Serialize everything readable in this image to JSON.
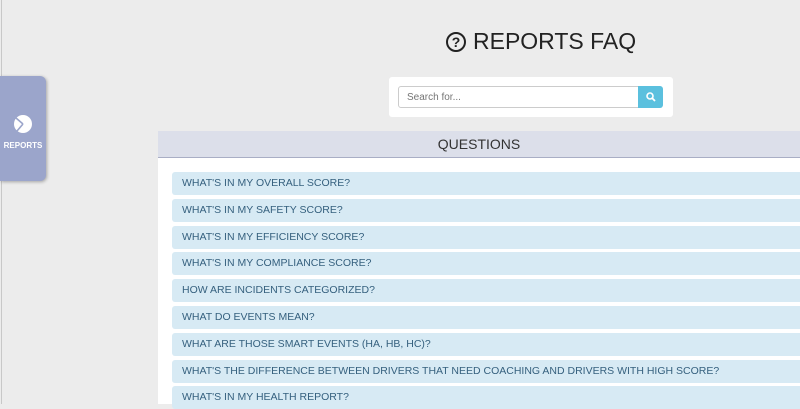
{
  "sidebar": {
    "reports_label": "REPORTS"
  },
  "page": {
    "title": "REPORTS FAQ"
  },
  "search": {
    "placeholder": "Search for...",
    "value": ""
  },
  "questions": {
    "header": "QUESTIONS",
    "items": [
      "WHAT'S IN MY OVERALL SCORE?",
      "WHAT'S IN MY SAFETY SCORE?",
      "WHAT'S IN MY EFFICIENCY SCORE?",
      "WHAT'S IN MY COMPLIANCE SCORE?",
      "HOW ARE INCIDENTS CATEGORIZED?",
      "WHAT DO EVENTS MEAN?",
      "WHAT ARE THOSE SMART EVENTS (HA, HB, HC)?",
      "WHAT'S THE DIFFERENCE BETWEEN DRIVERS THAT NEED COACHING AND DRIVERS WITH HIGH SCORE?",
      "WHAT'S IN MY HEALTH REPORT?"
    ]
  },
  "colors": {
    "sidebar": "#9ba5cb",
    "accent": "#5bc0de",
    "item_bg": "#d7eaf4",
    "item_text": "#35607e"
  }
}
